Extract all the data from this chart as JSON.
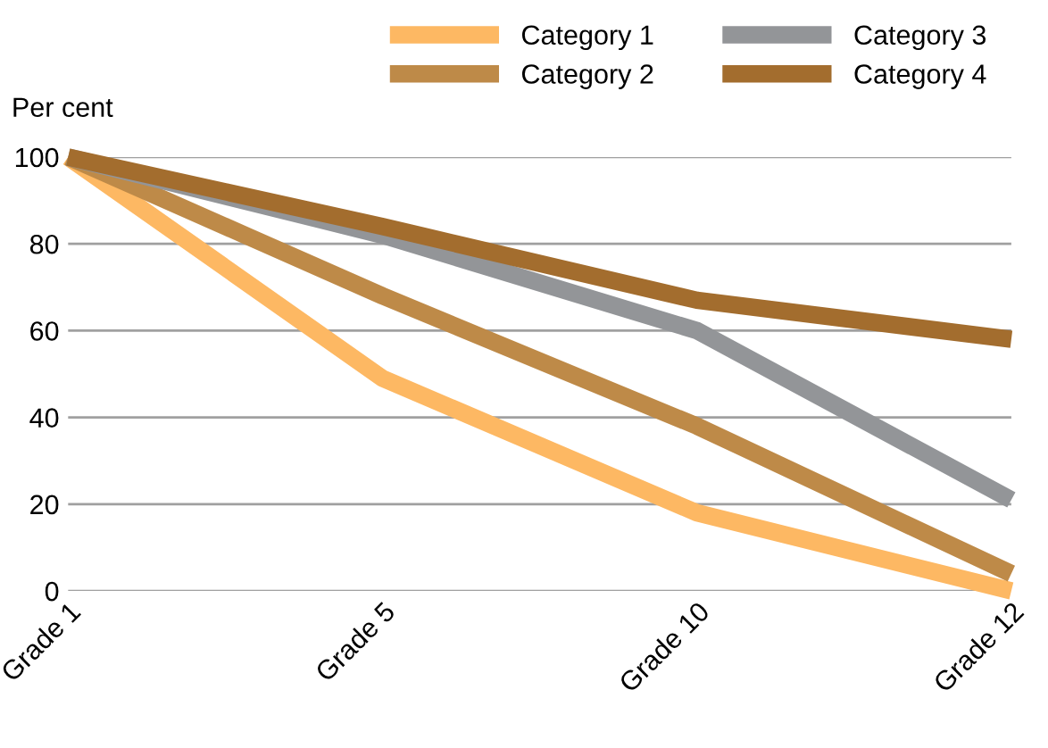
{
  "chart_data": {
    "type": "line",
    "ylabel": "Per cent",
    "categories": [
      "Grade 1",
      "Grade 5",
      "Grade 10",
      "Grade 12"
    ],
    "series": [
      {
        "name": "Category 1",
        "color": "#fdb863",
        "values": [
          100,
          49,
          18,
          0
        ]
      },
      {
        "name": "Category 2",
        "color": "#be8a48",
        "values": [
          100,
          68,
          38,
          4
        ]
      },
      {
        "name": "Category 3",
        "color": "#939598",
        "values": [
          100,
          82,
          60,
          21
        ]
      },
      {
        "name": "Category 4",
        "color": "#a36d2e",
        "values": [
          100,
          84,
          67,
          58
        ]
      }
    ],
    "ylim": [
      0,
      100
    ],
    "yticks": [
      0,
      20,
      40,
      60,
      80,
      100
    ],
    "grid": "y",
    "legend": "top right",
    "marker": "none",
    "line_style": "solid"
  }
}
